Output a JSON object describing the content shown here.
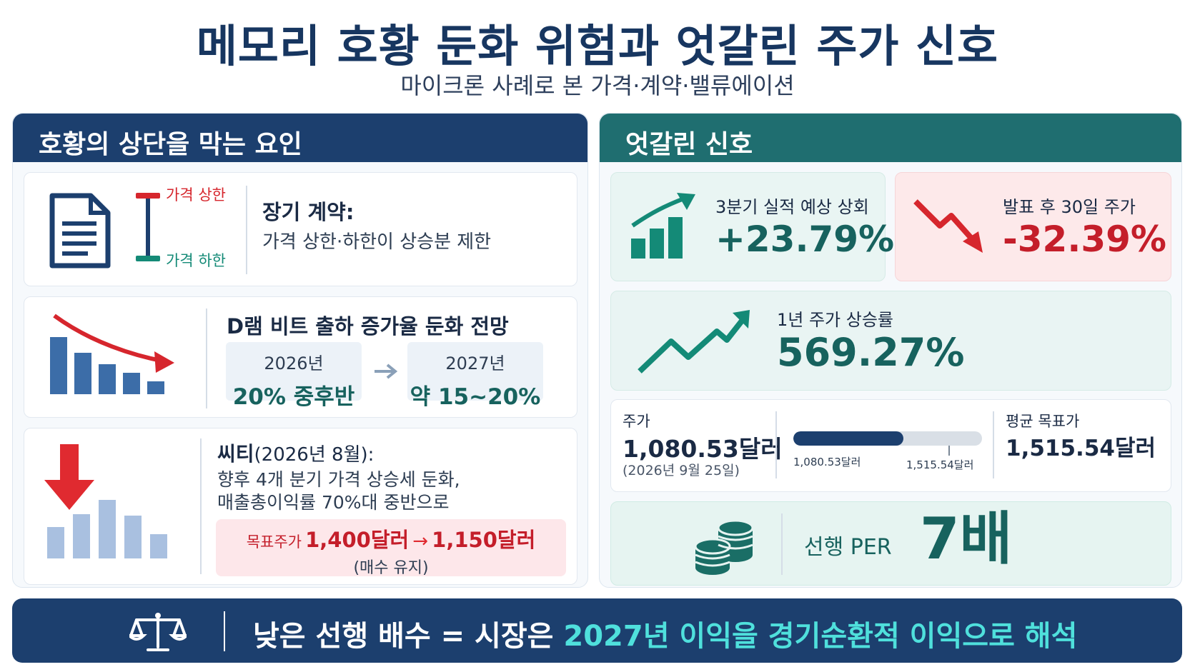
{
  "header": {
    "title": "메모리 호황 둔화 위험과 엇갈린 주가 신호",
    "subtitle": "마이크론 사례로 본 가격·계약·밸류에이션"
  },
  "left_panel": {
    "heading": "호황의 상단을 막는 요인",
    "contract": {
      "cap_label": "가격 상한",
      "floor_label": "가격 하한",
      "title": "장기 계약:",
      "desc": "가격 상한·하한이 상승분 제한",
      "icon": "document-icon"
    },
    "dram": {
      "title": "D램 비트 출하 증가율 둔화 전망",
      "from_year": "2026년",
      "from_value": "20% 중후반",
      "to_year": "2027년",
      "to_value": "약 15~20%",
      "icon": "declining-bar-chart-icon"
    },
    "citi": {
      "title": "씨티",
      "date": "(2026년 8월):",
      "line1": "향후 4개 분기 가격 상승세 둔화,",
      "line2": "매출총이익률 70%대 중반으로",
      "target_label": "목표주가",
      "target_from": "1,400달러",
      "arrow": "→",
      "target_to": "1,150달러",
      "rating": "(매수 유지)",
      "icon": "down-arrow-bar-chart-icon"
    }
  },
  "right_panel": {
    "heading": "엇갈린 신호",
    "q3": {
      "label": "3분기 실적 예상 상회",
      "value": "+23.79%"
    },
    "post": {
      "label": "발표 후 30일 주가",
      "value": "-32.39%"
    },
    "year": {
      "label": "1년 주가 상승률",
      "value": "569.27%"
    },
    "price": {
      "label": "주가",
      "value": "1,080.53달러",
      "date": "(2026년 9월 25일)",
      "bar_low_label": "1,080.53달러",
      "bar_high_label": "1,515.54달러",
      "target_label": "평균 목표가",
      "target_value": "1,515.54달러",
      "current": 1080.53,
      "target": 1515.54
    },
    "per": {
      "label": "선행 PER",
      "value": "7배",
      "icon": "coin-stack-icon"
    }
  },
  "footer": {
    "icon": "balance-scale-icon",
    "text_before": "낮은 선행 배수 = 시장은 ",
    "text_highlight": "2027년 이익을 경기순환적 이익으로 해석"
  },
  "colors": {
    "navy": "#1c3f6e",
    "teal": "#1f6e70",
    "red": "#d6262d",
    "green": "#148a77"
  }
}
